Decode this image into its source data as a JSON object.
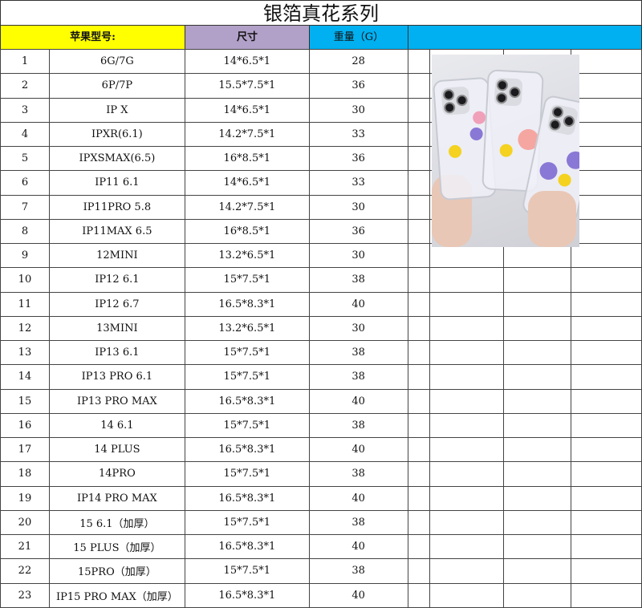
{
  "title": "银箔真花系列",
  "headers": {
    "model": "苹果型号:",
    "size": "尺寸",
    "weight": "重量（G）"
  },
  "colors": {
    "model_header": "#ffff00",
    "size_header": "#b1a0c7",
    "weight_header": "#00b0f0"
  },
  "rows": [
    {
      "no": "1",
      "model": "6G/7G",
      "size": "14*6.5*1",
      "weight": "28"
    },
    {
      "no": "2",
      "model": "6P/7P",
      "size": "15.5*7.5*1",
      "weight": "36"
    },
    {
      "no": "3",
      "model": "IP X",
      "size": "14*6.5*1",
      "weight": "30"
    },
    {
      "no": "4",
      "model": "IPXR(6.1)",
      "size": "14.2*7.5*1",
      "weight": "33"
    },
    {
      "no": "5",
      "model": "IPXSMAX(6.5)",
      "size": "16*8.5*1",
      "weight": "36"
    },
    {
      "no": "6",
      "model": "IP11 6.1",
      "size": "14*6.5*1",
      "weight": "33"
    },
    {
      "no": "7",
      "model": "IP11PRO 5.8",
      "size": "14.2*7.5*1",
      "weight": "30"
    },
    {
      "no": "8",
      "model": "IP11MAX 6.5",
      "size": "16*8.5*1",
      "weight": "36"
    },
    {
      "no": "9",
      "model": "12MINI",
      "size": "13.2*6.5*1",
      "weight": "30"
    },
    {
      "no": "10",
      "model": "IP12 6.1",
      "size": "15*7.5*1",
      "weight": "38"
    },
    {
      "no": "11",
      "model": "IP12 6.7",
      "size": "16.5*8.3*1",
      "weight": "40"
    },
    {
      "no": "12",
      "model": "13MINI",
      "size": "13.2*6.5*1",
      "weight": "30"
    },
    {
      "no": "13",
      "model": "IP13 6.1",
      "size": "15*7.5*1",
      "weight": "38"
    },
    {
      "no": "14",
      "model": "IP13 PRO 6.1",
      "size": "15*7.5*1",
      "weight": "38"
    },
    {
      "no": "15",
      "model": "IP13 PRO MAX",
      "size": "16.5*8.3*1",
      "weight": "40"
    },
    {
      "no": "16",
      "model": "14 6.1",
      "size": "15*7.5*1",
      "weight": "38"
    },
    {
      "no": "17",
      "model": "14 PLUS",
      "size": "16.5*8.3*1",
      "weight": "40"
    },
    {
      "no": "18",
      "model": "14PRO",
      "size": "15*7.5*1",
      "weight": "38"
    },
    {
      "no": "19",
      "model": "IP14 PRO MAX",
      "size": "16.5*8.3*1",
      "weight": "40"
    },
    {
      "no": "20",
      "model": "15 6.1（加厚）",
      "size": "15*7.5*1",
      "weight": "38"
    },
    {
      "no": "21",
      "model": "15 PLUS（加厚）",
      "size": "16.5*8.3*1",
      "weight": "40"
    },
    {
      "no": "22",
      "model": "15PRO（加厚）",
      "size": "15*7.5*1",
      "weight": "38"
    },
    {
      "no": "23",
      "model": "IP15 PRO MAX（加厚）",
      "size": "16.5*8.3*1",
      "weight": "40"
    }
  ]
}
